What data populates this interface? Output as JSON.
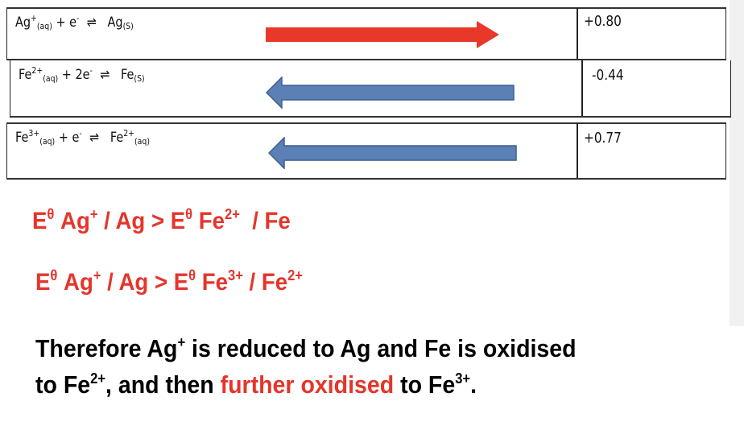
{
  "table": {
    "rows": [
      {
        "eq": [
          "Ag",
          "+",
          "(aq)",
          " + e",
          "-",
          "  ⇌   ",
          "Ag",
          "(S)"
        ],
        "value": "+0.80",
        "arrow": "right",
        "arrow_color": "#e8382a"
      },
      {
        "eq": [
          "Fe",
          "2+",
          "(aq)",
          " + 2e",
          "-",
          "  ⇌   ",
          "Fe",
          "(S)"
        ],
        "value": "-0.44",
        "arrow": "left",
        "arrow_color": "#5b80b6"
      },
      {
        "eq": [
          "Fe",
          "3+",
          "(aq)",
          " + e",
          "-",
          "  ⇌   ",
          "Fe",
          "2+",
          "(aq)"
        ],
        "value": "+0.77",
        "arrow": "left",
        "arrow_color": "#5b80b6"
      }
    ]
  },
  "comparisons": [
    [
      "E",
      "θ",
      " Ag",
      "+",
      " / Ag > E",
      "θ",
      " Fe",
      "2+",
      "  / Fe"
    ],
    [
      "E",
      "θ",
      " Ag",
      "+",
      " / Ag > E",
      "θ",
      " Fe",
      "3+",
      " / Fe",
      "2+"
    ]
  ],
  "conclusion": {
    "line1": [
      "Therefore Ag",
      "+",
      " is reduced to Ag and Fe is oxidised"
    ],
    "line2": [
      "to Fe",
      "2+",
      ", and then ",
      "further oxidised",
      " to Fe",
      "3+",
      "."
    ]
  },
  "colors": {
    "highlight": "#e5352b",
    "red_arrow": "#e8382a",
    "blue_arrow": "#5b80b6"
  }
}
